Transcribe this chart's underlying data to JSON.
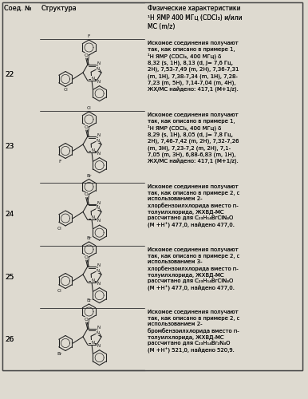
{
  "bg_color": "#dedad0",
  "line_color": "#444444",
  "text_color": "#111111",
  "header_texts": [
    "Соед. №",
    "Структура",
    "Физические характеристики\n¹Н ЯМР 400 МГц (CDCl₃) и/или\nМС (m/z)"
  ],
  "rows": [
    {
      "num": "22",
      "halogen1": "F",
      "halogen1_pos": "para_top",
      "halogen2": "Cl",
      "halogen2_pos": "para_bot",
      "text": "Искомое соединения получают\nтак, как описано в примере 1,\n¹Н ЯМР (CDCl₃, 400 МГц) δ\n8,32 (s, 1H), 8,13 (d, J= 7,6 Гц,\n2H), 7,53-7,49 (m, 2H), 7,36-7,31\n(m, 1H), 7,38-7,34 (m, 1H), 7,28-\n7,23 (m, 5H), 7,14-7,04 (m, 4H),\nЖХ/МС найдено: 417,1 (M+1/z)."
    },
    {
      "num": "23",
      "halogen1": "Cl",
      "halogen1_pos": "para_top",
      "halogen2": "F",
      "halogen2_pos": "ortho_bot",
      "text": "Искомое соединения получают\nтак, как описано в примере 1,\n¹Н ЯМР (CDCl₃, 400 МГц) δ\n8,29 (s, 1H), 8,05 (d, J= 7,8 Гц,\n2H), 7,46-7,42 (m, 2H), 7,32-7,26\n(m, 3H), 7,23-7,2 (m, 2H), 7,1-\n7,05 (m, 3H), 6,88-6,83 (m, 1H),\nЖХ/МС найдено: 417,1 (M+1/z)."
    },
    {
      "num": "24",
      "halogen1": "Br",
      "halogen1_pos": "para_top",
      "halogen2": "Cl",
      "halogen2_pos": "ortho_bot",
      "text": "Искомое соединения получают\nтак, как описано в примере 2, с\nиспользованием 2-\nхлорбензоилхлорида вместо п-\nтолуилхлорида, ЖХВД-МС\nрассчитано для C₂₃H₁₄BrClN₄O\n(М +Н⁺) 477,0, найдено 477,0."
    },
    {
      "num": "25",
      "halogen1": "Br",
      "halogen1_pos": "para_top",
      "halogen2": "Cl",
      "halogen2_pos": "meta_bot",
      "text": "Искомое соединения получают\nтак, как описано в примере 2, с\nиспользованием 3-\nхлорбензоилхлорида вместо п-\nтолуилхлорида, ЖХВД-МС\nрассчитано для C₂₃H₁₄BrClN₄O\n(М +Н⁺) 477,0, найдено 477,0."
    },
    {
      "num": "26",
      "halogen1": "Br",
      "halogen1_pos": "para_top",
      "halogen2": "Br",
      "halogen2_pos": "ortho_bot",
      "text": "Искомое соединения получают\nтак, как описано в примере 2, с\nиспользованием 2-\nбромбензоилхлорида вместо п-\nтолуилхлорида, ЖХВД-МС\nрассчитано для C₂₃H₁₄Br₂N₄O\n(М +Н⁺) 521,0, найдено 520,9."
    }
  ]
}
